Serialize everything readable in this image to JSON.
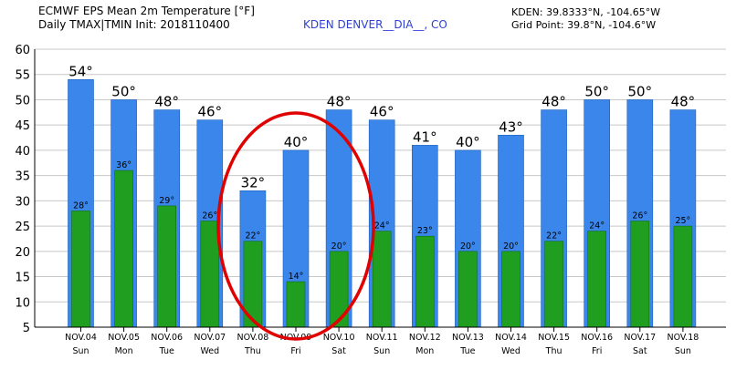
{
  "header": {
    "title_line1": "ECMWF EPS Mean 2m Temperature [°F]",
    "title_line2": "Daily TMAX|TMIN Init: 2018110400",
    "station": "KDEN DENVER__DIA__, CO",
    "coords": "KDEN: 39.8333°N, -104.65°W",
    "grid_point": "Grid Point: 39.8°N, -104.6°W"
  },
  "colors": {
    "tmax_bar": "#3a86ea",
    "tmin_bar": "#1f9e1f",
    "highlight_circle": "#e00000",
    "station_text": "#2e3fd6"
  },
  "chart_data": {
    "type": "bar",
    "title": "ECMWF EPS Mean 2m Temperature [°F]",
    "ylim": [
      5,
      60
    ],
    "yticks": [
      5,
      10,
      15,
      20,
      25,
      30,
      35,
      40,
      45,
      50,
      55,
      60
    ],
    "grid": true,
    "categories": [
      "NOV.04",
      "NOV.05",
      "NOV.06",
      "NOV.07",
      "NOV.08",
      "NOV.09",
      "NOV.10",
      "NOV.11",
      "NOV.12",
      "NOV.13",
      "NOV.14",
      "NOV.15",
      "NOV.16",
      "NOV.17",
      "NOV.18"
    ],
    "days": [
      "Sun",
      "Mon",
      "Tue",
      "Wed",
      "Thu",
      "Fri",
      "Sat",
      "Sun",
      "Mon",
      "Tue",
      "Wed",
      "Thu",
      "Fri",
      "Sat",
      "Sun"
    ],
    "series": [
      {
        "key": "tmax",
        "values": [
          54,
          50,
          48,
          46,
          32,
          40,
          48,
          46,
          41,
          40,
          43,
          48,
          50,
          50,
          48
        ],
        "labels": [
          "54°",
          "50°",
          "48°",
          "46°",
          "32°",
          "40°",
          "48°",
          "46°",
          "41°",
          "40°",
          "43°",
          "48°",
          "50°",
          "50°",
          "48°"
        ]
      },
      {
        "key": "tmin",
        "values": [
          28,
          36,
          29,
          26,
          22,
          14,
          20,
          24,
          23,
          20,
          20,
          22,
          24,
          26,
          25
        ],
        "labels": [
          "28°",
          "36°",
          "29°",
          "26°",
          "22°",
          "14°",
          "20°",
          "24°",
          "23°",
          "20°",
          "20°",
          "22°",
          "24°",
          "26°",
          "25°"
        ]
      }
    ],
    "annotation": {
      "type": "ellipse",
      "around": [
        "NOV.08",
        "NOV.09",
        "NOV.10"
      ]
    }
  }
}
